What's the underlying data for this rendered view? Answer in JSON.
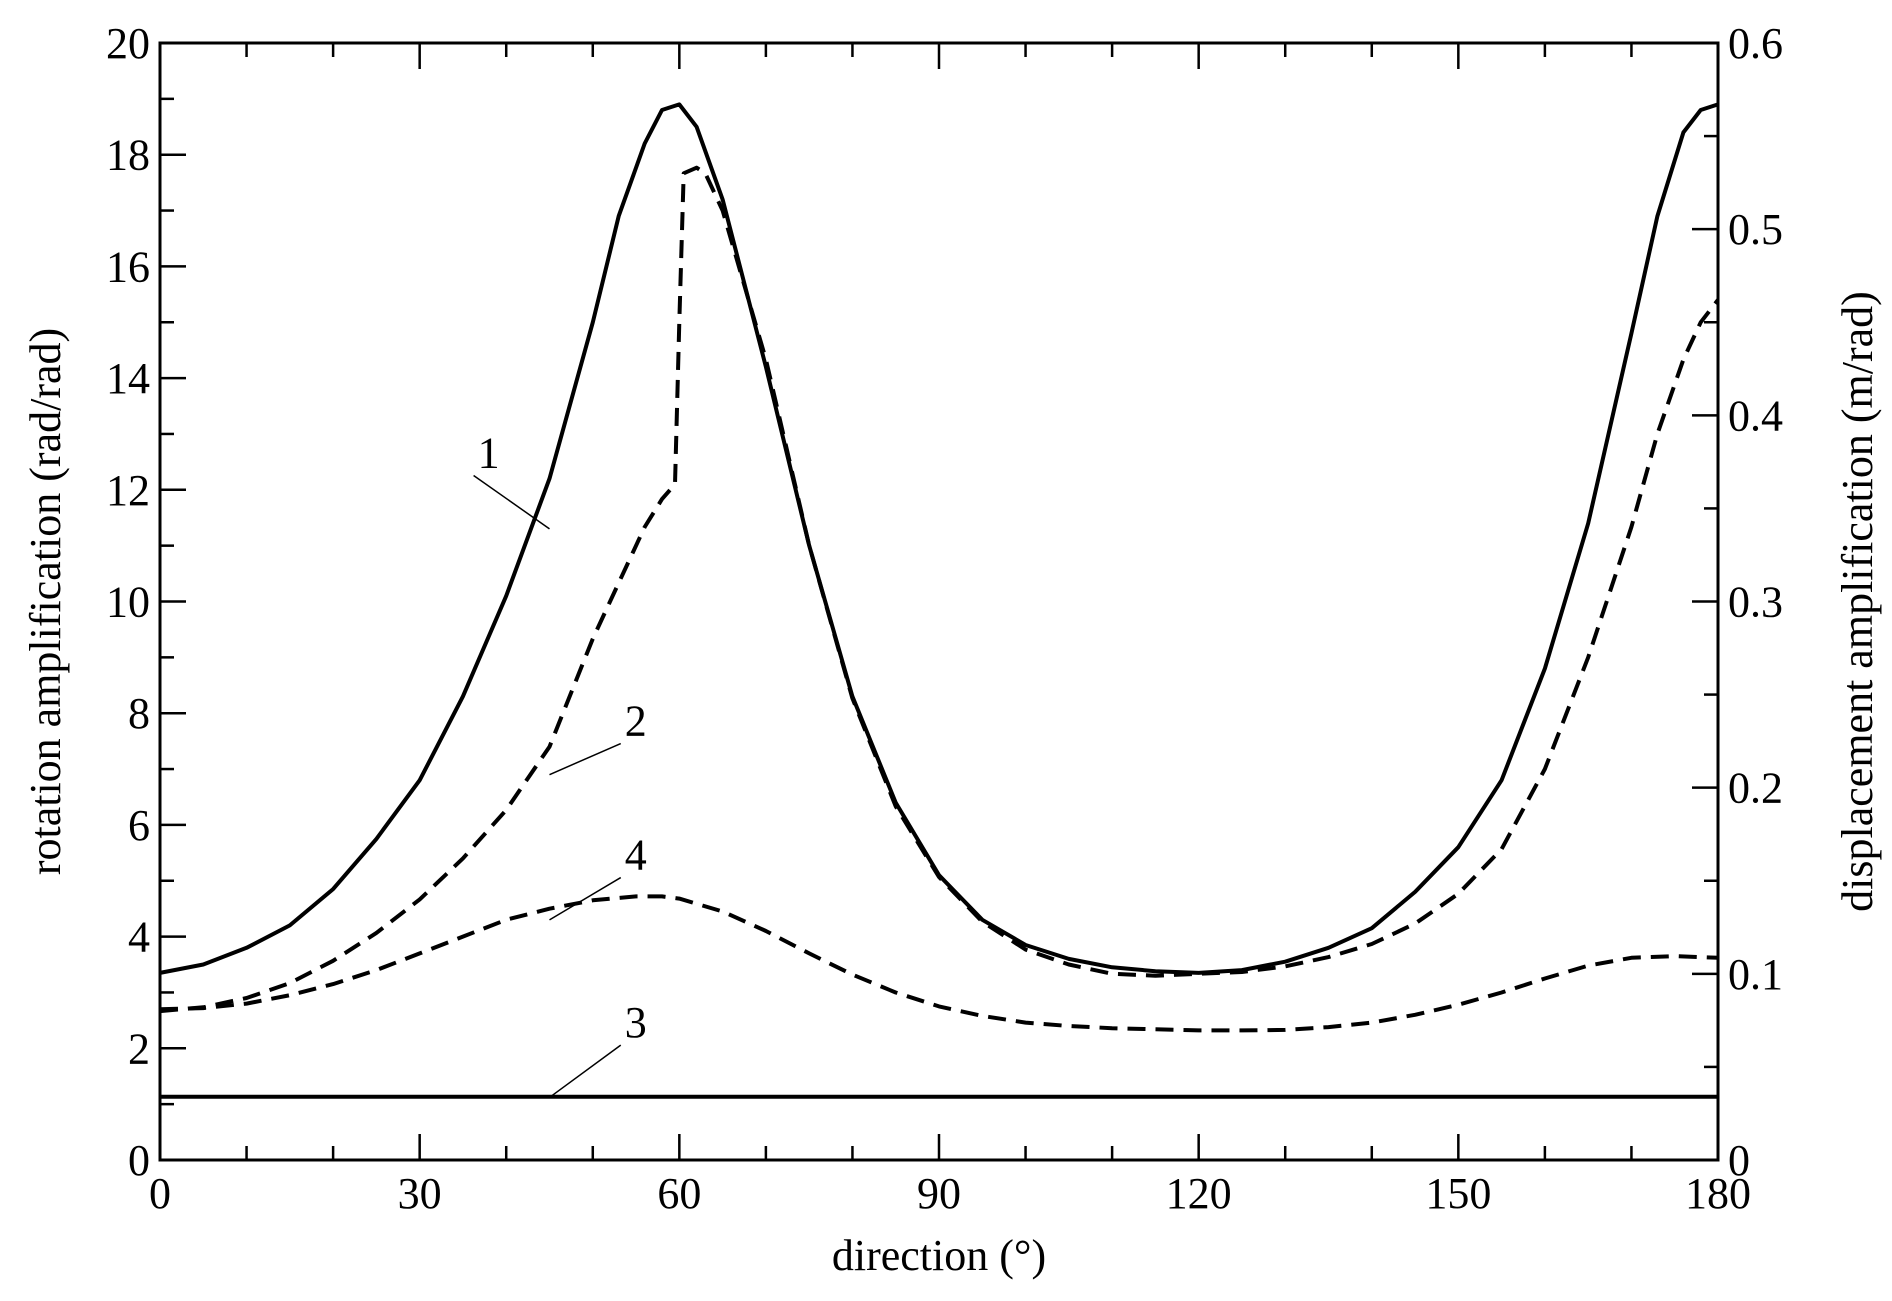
{
  "chart_data": {
    "type": "line",
    "xlabel": "direction (°)",
    "ylabel": "rotation amplification (rad/rad)",
    "y2label": "displacement amplification (m/rad)",
    "xlim": [
      0,
      180
    ],
    "ylim": [
      0,
      20
    ],
    "y2lim": [
      0,
      0.6
    ],
    "xticks": [
      0,
      30,
      60,
      90,
      120,
      150,
      180
    ],
    "xtick_labels": [
      "0",
      "30",
      "60",
      "90",
      "120",
      "150",
      "180"
    ],
    "yticks": [
      0,
      2,
      4,
      6,
      8,
      10,
      12,
      14,
      16,
      18,
      20
    ],
    "ytick_labels": [
      "0",
      "2",
      "4",
      "6",
      "8",
      "10",
      "12",
      "14",
      "16",
      "18",
      "20"
    ],
    "y2ticks": [
      0,
      0.1,
      0.2,
      0.3,
      0.4,
      0.5,
      0.6
    ],
    "y2tick_labels": [
      "0",
      "0.1",
      "0.2",
      "0.3",
      "0.4",
      "0.5",
      "0.6"
    ],
    "grid": false,
    "legend": "none",
    "series": [
      {
        "label": "1",
        "axis": "left",
        "style": "solid",
        "label_pos": [
          36,
          12.4
        ],
        "leader_end": [
          45,
          11.3
        ],
        "x": [
          0,
          5,
          10,
          15,
          20,
          25,
          30,
          35,
          40,
          45,
          50,
          53,
          56,
          58,
          60,
          62,
          65,
          70,
          75,
          80,
          85,
          90,
          95,
          100,
          105,
          110,
          115,
          120,
          125,
          130,
          135,
          140,
          145,
          150,
          155,
          160,
          165,
          170,
          173,
          176,
          178,
          180
        ],
        "y": [
          3.35,
          3.5,
          3.8,
          4.2,
          4.85,
          5.75,
          6.8,
          8.3,
          10.1,
          12.2,
          15.0,
          16.9,
          18.2,
          18.8,
          18.9,
          18.5,
          17.2,
          14.2,
          11.0,
          8.3,
          6.4,
          5.1,
          4.3,
          3.85,
          3.6,
          3.45,
          3.38,
          3.35,
          3.4,
          3.55,
          3.8,
          4.15,
          4.8,
          5.6,
          6.8,
          8.8,
          11.4,
          14.8,
          16.9,
          18.4,
          18.8,
          18.9
        ]
      },
      {
        "label": "2",
        "axis": "right",
        "style": "dashed",
        "label_pos": [
          53,
          7.6
        ],
        "leader_end": [
          45,
          6.9
        ],
        "x": [
          0,
          5,
          10,
          15,
          20,
          25,
          30,
          35,
          40,
          45,
          50,
          53,
          56,
          58,
          59.5,
          60,
          60.5,
          62,
          63,
          65,
          70,
          75,
          80,
          85,
          90,
          95,
          100,
          105,
          110,
          115,
          120,
          125,
          130,
          135,
          140,
          145,
          150,
          155,
          160,
          165,
          170,
          173,
          176,
          178,
          180
        ],
        "y": [
          0.08,
          0.082,
          0.087,
          0.095,
          0.107,
          0.122,
          0.14,
          0.162,
          0.188,
          0.222,
          0.28,
          0.31,
          0.34,
          0.355,
          0.363,
          0.45,
          0.53,
          0.533,
          0.53,
          0.51,
          0.43,
          0.33,
          0.248,
          0.19,
          0.152,
          0.128,
          0.113,
          0.105,
          0.1,
          0.099,
          0.1,
          0.101,
          0.104,
          0.109,
          0.116,
          0.127,
          0.143,
          0.167,
          0.21,
          0.27,
          0.34,
          0.39,
          0.43,
          0.45,
          0.462
        ]
      },
      {
        "label": "3",
        "axis": "right",
        "style": "solid",
        "label_pos": [
          53,
          2.2
        ],
        "leader_end": [
          45,
          1.12
        ],
        "x": [
          0,
          180
        ],
        "y": [
          0.034,
          0.034
        ]
      },
      {
        "label": "4",
        "axis": "left",
        "style": "dashed",
        "label_pos": [
          53,
          5.2
        ],
        "leader_end": [
          45,
          4.3
        ],
        "x": [
          0,
          5,
          10,
          15,
          20,
          25,
          30,
          35,
          40,
          45,
          50,
          55,
          58,
          60,
          65,
          70,
          75,
          80,
          85,
          90,
          95,
          100,
          105,
          110,
          115,
          120,
          125,
          130,
          135,
          140,
          145,
          150,
          155,
          160,
          165,
          170,
          175,
          180
        ],
        "y": [
          2.7,
          2.72,
          2.8,
          2.95,
          3.15,
          3.4,
          3.7,
          4.0,
          4.3,
          4.5,
          4.65,
          4.72,
          4.72,
          4.68,
          4.45,
          4.1,
          3.7,
          3.32,
          3.0,
          2.75,
          2.58,
          2.46,
          2.4,
          2.36,
          2.34,
          2.32,
          2.32,
          2.33,
          2.38,
          2.46,
          2.6,
          2.78,
          3.0,
          3.25,
          3.48,
          3.62,
          3.65,
          3.62
        ]
      }
    ]
  }
}
